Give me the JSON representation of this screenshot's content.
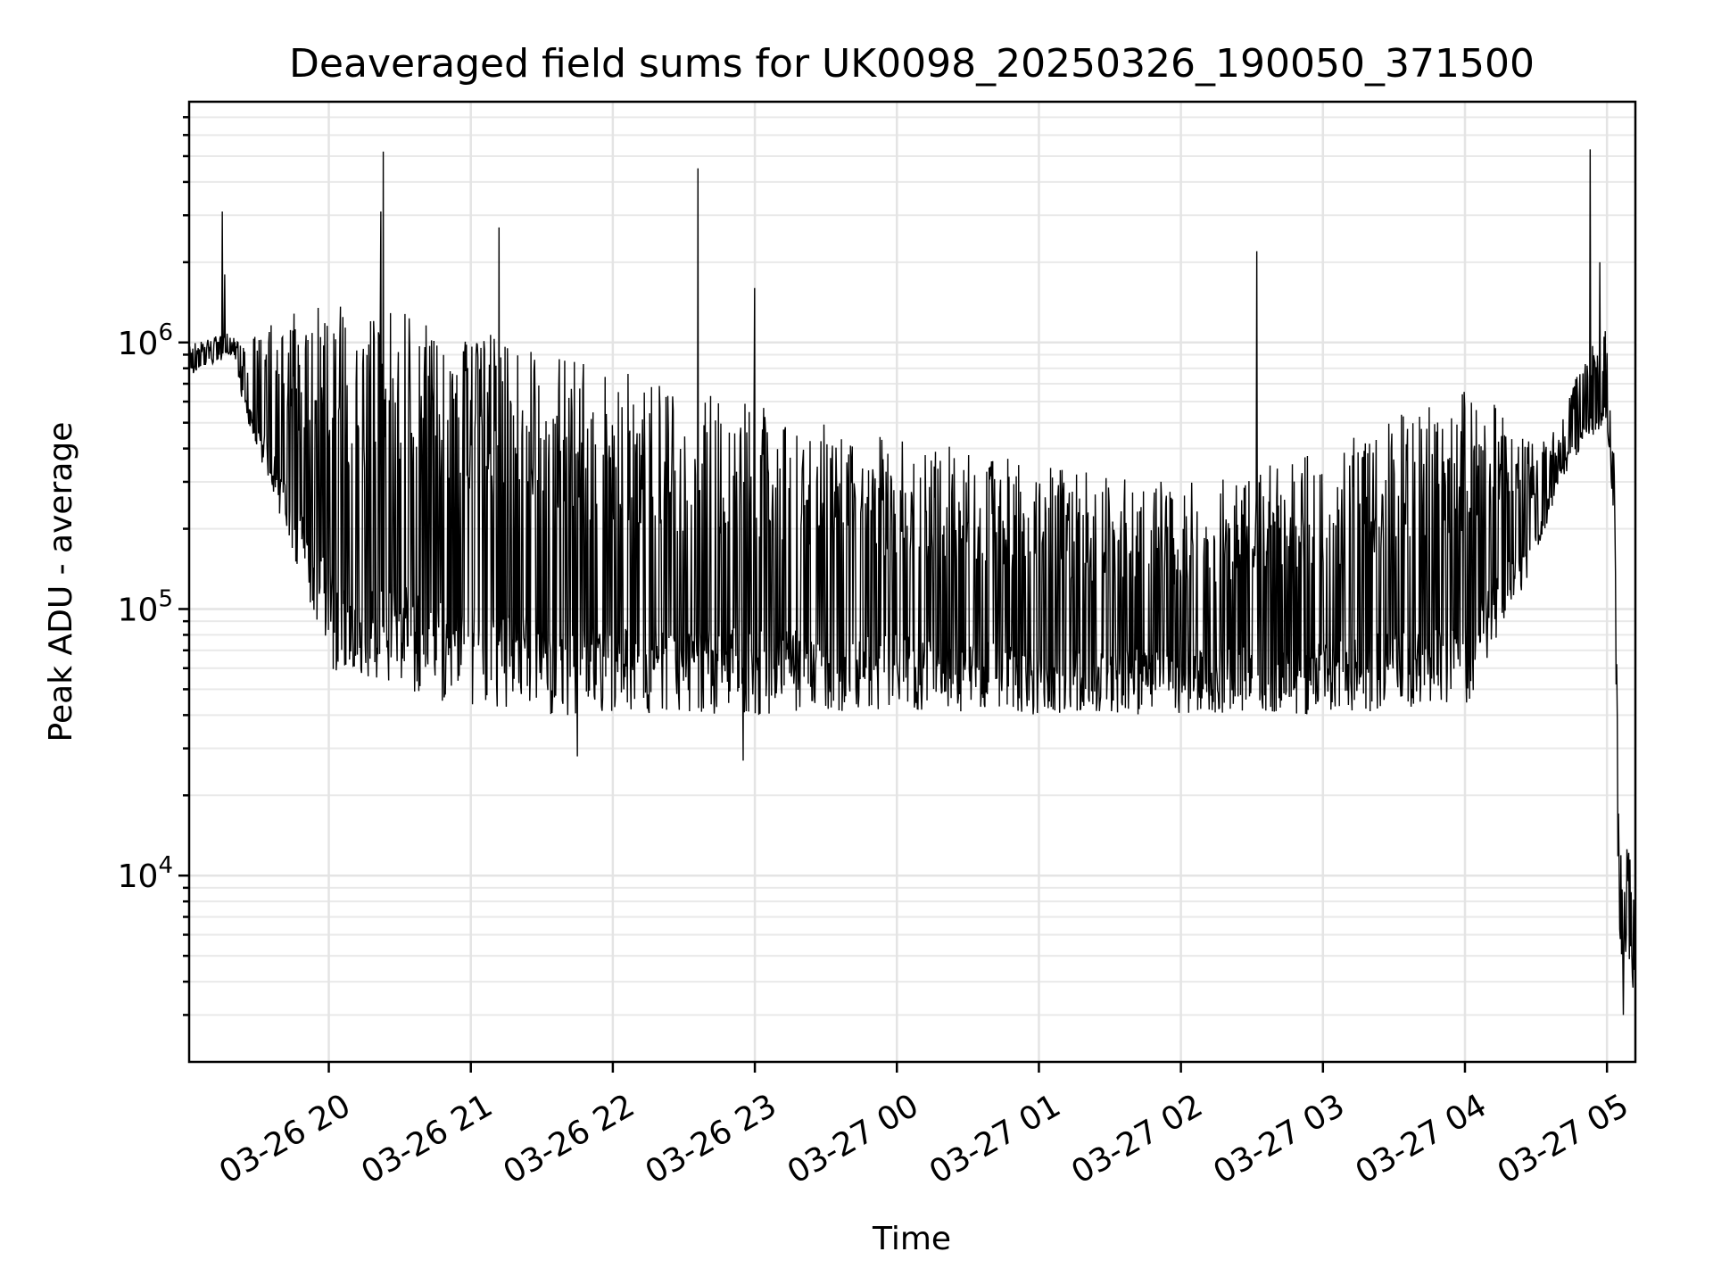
{
  "chart_data": {
    "type": "line",
    "title": "Deaveraged field sums for UK0098_20250326_190050_371500",
    "xlabel": "Time",
    "ylabel": "Peak ADU - average",
    "yscale": "log",
    "ylim": [
      2000,
      8000000
    ],
    "xlim": [
      "2025-03-26 19:01",
      "2025-03-27 05:12"
    ],
    "grid": true,
    "legend": "none",
    "x_ticks": [
      "03-26 20",
      "03-26 21",
      "03-26 22",
      "03-26 23",
      "03-27 00",
      "03-27 01",
      "03-27 02",
      "03-27 03",
      "03-27 04",
      "03-27 05"
    ],
    "y_ticks": [
      {
        "value": 10000,
        "base": "10",
        "exp": "4"
      },
      {
        "value": 100000,
        "base": "10",
        "exp": "5"
      },
      {
        "value": 1000000,
        "base": "10",
        "exp": "6"
      }
    ],
    "series": [
      {
        "color": "#000000",
        "envelope": {
          "x": [
            "2025-03-26 19:01",
            "2025-03-26 19:20",
            "2025-03-26 19:25",
            "2025-03-26 19:35",
            "2025-03-26 19:45",
            "2025-03-26 20:00",
            "2025-03-26 20:30",
            "2025-03-26 21:00",
            "2025-03-26 21:30",
            "2025-03-26 22:00",
            "2025-03-26 23:00",
            "2025-03-27 00:00",
            "2025-03-27 01:00",
            "2025-03-27 02:00",
            "2025-03-27 03:00",
            "2025-03-27 04:00",
            "2025-03-27 04:15",
            "2025-03-27 04:30",
            "2025-03-27 04:40",
            "2025-03-27 04:50",
            "2025-03-27 05:00",
            "2025-03-27 05:03",
            "2025-03-27 05:05",
            "2025-03-27 05:12"
          ],
          "high": [
            1000000,
            1100000,
            1000000,
            1200000,
            1300000,
            1400000,
            1300000,
            1100000,
            1000000,
            800000,
            600000,
            450000,
            350000,
            300000,
            400000,
            700000,
            600000,
            400000,
            500000,
            900000,
            1200000,
            400000,
            15000,
            12000
          ],
          "low": [
            750000,
            900000,
            500000,
            300000,
            150000,
            60000,
            50000,
            42000,
            40000,
            40000,
            40000,
            42000,
            40000,
            40000,
            40000,
            42000,
            80000,
            150000,
            300000,
            400000,
            500000,
            200000,
            5000,
            4000
          ]
        },
        "spikes": [
          {
            "x": "2025-03-26 19:15",
            "y": 3100000
          },
          {
            "x": "2025-03-26 19:16",
            "y": 1800000
          },
          {
            "x": "2025-03-26 20:23",
            "y": 5200000
          },
          {
            "x": "2025-03-26 20:22",
            "y": 3100000
          },
          {
            "x": "2025-03-26 21:12",
            "y": 2700000
          },
          {
            "x": "2025-03-26 22:36",
            "y": 4500000
          },
          {
            "x": "2025-03-26 23:00",
            "y": 1600000
          },
          {
            "x": "2025-03-27 02:32",
            "y": 2200000
          },
          {
            "x": "2025-03-27 04:53",
            "y": 5300000
          },
          {
            "x": "2025-03-27 04:57",
            "y": 2000000
          }
        ],
        "dips": [
          {
            "x": "2025-03-26 22:55",
            "y": 27000
          },
          {
            "x": "2025-03-26 21:45",
            "y": 28000
          },
          {
            "x": "2025-03-27 05:07",
            "y": 3000
          },
          {
            "x": "2025-03-27 05:11",
            "y": 3800
          }
        ]
      }
    ]
  }
}
